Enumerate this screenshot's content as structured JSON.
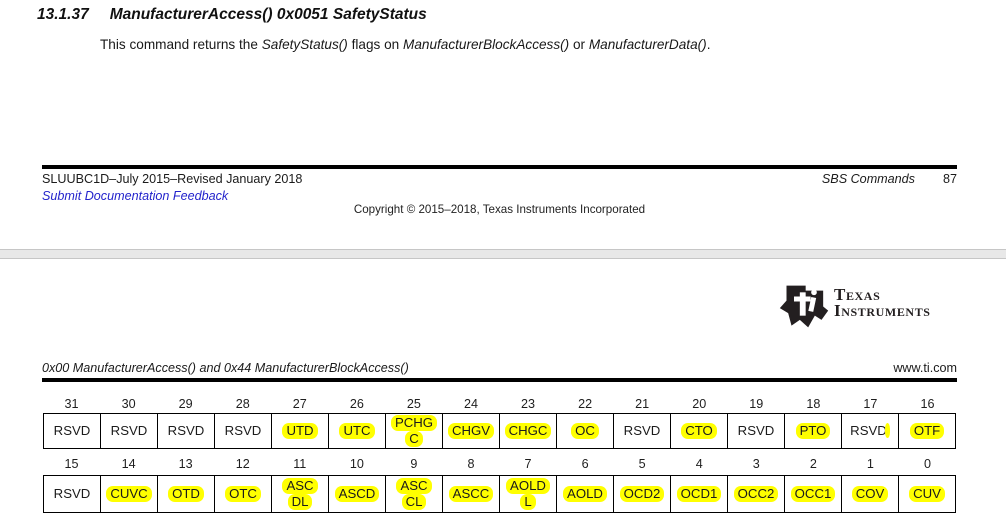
{
  "colors": {
    "highlight": "#ffff00",
    "link_blue": "#2323cc",
    "rule_black": "#000000",
    "separator_gray": "#e8e8e8",
    "logo_black": "#231f20"
  },
  "page1": {
    "section_number": "13.1.37",
    "section_title": "ManufacturerAccess() 0x0051 SafetyStatus",
    "body_segments": [
      {
        "text": "This command returns the ",
        "italic": false
      },
      {
        "text": "SafetyStatus()",
        "italic": true
      },
      {
        "text": " flags on ",
        "italic": false
      },
      {
        "text": "ManufacturerBlockAccess()",
        "italic": true
      },
      {
        "text": " or ",
        "italic": false
      },
      {
        "text": "ManufacturerData()",
        "italic": true
      },
      {
        "text": ".",
        "italic": false
      }
    ],
    "footer": {
      "doc_revision": "SLUUBC1D–July 2015–Revised January 2018",
      "feedback_link": "Submit Documentation Feedback",
      "chapter_label": "SBS Commands",
      "page_number": "87",
      "copyright": "Copyright © 2015–2018, Texas Instruments Incorporated"
    }
  },
  "page2": {
    "logo": {
      "icon": "ti-bug-icon",
      "line1": "Texas",
      "line2": "Instruments"
    },
    "header": {
      "left": "0x00 ManufacturerAccess() and 0x44 ManufacturerBlockAccess()",
      "right": "www.ti.com"
    },
    "register_table": {
      "rows": [
        {
          "bits": [
            "31",
            "30",
            "29",
            "28",
            "27",
            "26",
            "25",
            "24",
            "23",
            "22",
            "21",
            "20",
            "19",
            "18",
            "17",
            "16"
          ],
          "cells": [
            {
              "label": "RSVD",
              "lines": [
                "RSVD"
              ],
              "highlight": false
            },
            {
              "label": "RSVD",
              "lines": [
                "RSVD"
              ],
              "highlight": false
            },
            {
              "label": "RSVD",
              "lines": [
                "RSVD"
              ],
              "highlight": false
            },
            {
              "label": "RSVD",
              "lines": [
                "RSVD"
              ],
              "highlight": false
            },
            {
              "label": "UTD",
              "lines": [
                "UTD"
              ],
              "highlight": true
            },
            {
              "label": "UTC",
              "lines": [
                "UTC"
              ],
              "highlight": true
            },
            {
              "label": "PCHGC",
              "lines": [
                "PCHG",
                "C"
              ],
              "highlight": true
            },
            {
              "label": "CHGV",
              "lines": [
                "CHGV"
              ],
              "highlight": true
            },
            {
              "label": "CHGC",
              "lines": [
                "CHGC"
              ],
              "highlight": true
            },
            {
              "label": "OC",
              "lines": [
                "OC"
              ],
              "highlight": true
            },
            {
              "label": "RSVD",
              "lines": [
                "RSVD"
              ],
              "highlight": false
            },
            {
              "label": "CTO",
              "lines": [
                "CTO"
              ],
              "highlight": true
            },
            {
              "label": "RSVD",
              "lines": [
                "RSVD"
              ],
              "highlight": false
            },
            {
              "label": "PTO",
              "lines": [
                "PTO"
              ],
              "highlight": true
            },
            {
              "label": "RSVD",
              "lines": [
                "RSVD"
              ],
              "highlight": false,
              "sliver": true
            },
            {
              "label": "OTF",
              "lines": [
                "OTF"
              ],
              "highlight": true
            }
          ]
        },
        {
          "bits": [
            "15",
            "14",
            "13",
            "12",
            "11",
            "10",
            "9",
            "8",
            "7",
            "6",
            "5",
            "4",
            "3",
            "2",
            "1",
            "0"
          ],
          "cells": [
            {
              "label": "RSVD",
              "lines": [
                "RSVD"
              ],
              "highlight": false
            },
            {
              "label": "CUVC",
              "lines": [
                "CUVC"
              ],
              "highlight": true
            },
            {
              "label": "OTD",
              "lines": [
                "OTD"
              ],
              "highlight": true
            },
            {
              "label": "OTC",
              "lines": [
                "OTC"
              ],
              "highlight": true
            },
            {
              "label": "ASCDL",
              "lines": [
                "ASC",
                "DL"
              ],
              "highlight": true
            },
            {
              "label": "ASCD",
              "lines": [
                "ASCD"
              ],
              "highlight": true
            },
            {
              "label": "ASCCL",
              "lines": [
                "ASC",
                "CL"
              ],
              "highlight": true
            },
            {
              "label": "ASCC",
              "lines": [
                "ASCC"
              ],
              "highlight": true
            },
            {
              "label": "AOLDL",
              "lines": [
                "AOLD",
                "L"
              ],
              "highlight": true
            },
            {
              "label": "AOLD",
              "lines": [
                "AOLD"
              ],
              "highlight": true
            },
            {
              "label": "OCD2",
              "lines": [
                "OCD2"
              ],
              "highlight": true
            },
            {
              "label": "OCD1",
              "lines": [
                "OCD1"
              ],
              "highlight": true
            },
            {
              "label": "OCC2",
              "lines": [
                "OCC2"
              ],
              "highlight": true
            },
            {
              "label": "OCC1",
              "lines": [
                "OCC1"
              ],
              "highlight": true
            },
            {
              "label": "COV",
              "lines": [
                "COV"
              ],
              "highlight": true
            },
            {
              "label": "CUV",
              "lines": [
                "CUV"
              ],
              "highlight": true
            }
          ]
        }
      ]
    }
  }
}
